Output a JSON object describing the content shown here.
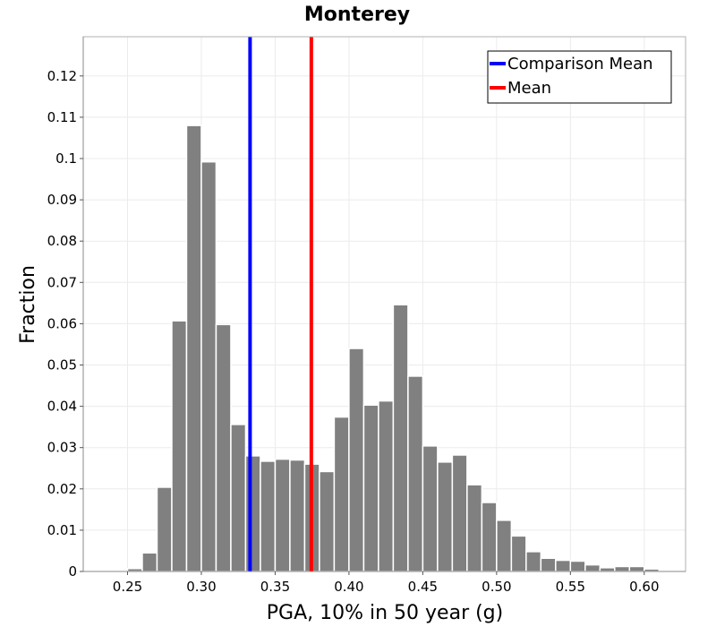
{
  "chart_data": {
    "type": "bar",
    "title": "Monterey",
    "xlabel": "PGA, 10% in 50 year (g)",
    "ylabel": "Fraction",
    "xlim": [
      0.22,
      0.628
    ],
    "ylim": [
      0,
      0.1295
    ],
    "x_ticks": [
      "0.25",
      "0.30",
      "0.35",
      "0.40",
      "0.45",
      "0.50",
      "0.55",
      "0.60"
    ],
    "x_tick_values": [
      0.25,
      0.3,
      0.35,
      0.4,
      0.45,
      0.5,
      0.55,
      0.6
    ],
    "y_ticks": [
      "0",
      "0.01",
      "0.02",
      "0.03",
      "0.04",
      "0.05",
      "0.06",
      "0.07",
      "0.08",
      "0.09",
      "0.1",
      "0.11",
      "0.12"
    ],
    "y_tick_values": [
      0,
      0.01,
      0.02,
      0.03,
      0.04,
      0.05,
      0.06,
      0.07,
      0.08,
      0.09,
      0.1,
      0.11,
      0.12
    ],
    "grid": true,
    "bar_color": "#808080",
    "bin_width": 0.01,
    "bins": [
      0.24,
      0.25,
      0.26,
      0.27,
      0.28,
      0.29,
      0.3,
      0.31,
      0.32,
      0.33,
      0.34,
      0.35,
      0.36,
      0.37,
      0.38,
      0.39,
      0.4,
      0.41,
      0.42,
      0.43,
      0.44,
      0.45,
      0.46,
      0.47,
      0.48,
      0.49,
      0.5,
      0.51,
      0.52,
      0.53,
      0.54,
      0.55,
      0.56,
      0.57,
      0.58,
      0.59,
      0.6,
      0.61
    ],
    "values": [
      0.0003,
      0.0007,
      0.0045,
      0.0204,
      0.0607,
      0.108,
      0.0992,
      0.0598,
      0.0356,
      0.028,
      0.0267,
      0.0272,
      0.027,
      0.026,
      0.0242,
      0.0374,
      0.054,
      0.0403,
      0.0413,
      0.0646,
      0.0473,
      0.0304,
      0.0265,
      0.0282,
      0.021,
      0.0167,
      0.0124,
      0.0086,
      0.0048,
      0.0032,
      0.0027,
      0.0025,
      0.0016,
      0.0009,
      0.0012,
      0.0012,
      0.0006,
      0.0002
    ],
    "vlines": [
      {
        "name": "Comparison Mean",
        "x": 0.333,
        "color": "#0000ff"
      },
      {
        "name": "Mean",
        "x": 0.3745,
        "color": "#ff0000"
      }
    ],
    "legend": {
      "placement": "top-right"
    }
  }
}
